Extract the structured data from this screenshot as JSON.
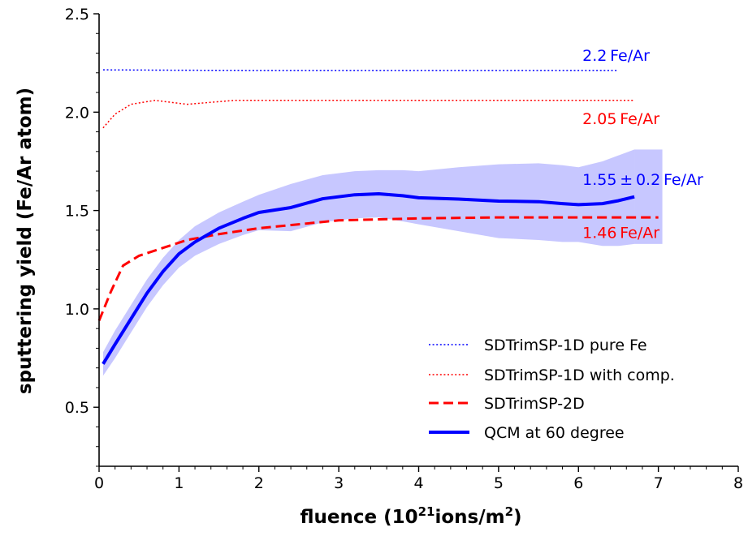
{
  "chart_data": {
    "type": "line",
    "xlabel": {
      "prefix": "fluence (10",
      "sup1": "21",
      "mid": "ions/m",
      "sup2": "2",
      "suffix": ")"
    },
    "ylabel": "sputtering yield (Fe/Ar atom)",
    "xlim": [
      0,
      8
    ],
    "ylim": [
      0.2,
      2.5
    ],
    "xticks": [
      0,
      1,
      2,
      3,
      4,
      5,
      6,
      7,
      8
    ],
    "xtick_labels": [
      "0",
      "1",
      "2",
      "3",
      "4",
      "5",
      "6",
      "7",
      "8"
    ],
    "yticks": [
      0.5,
      1.0,
      1.5,
      2.0,
      2.5
    ],
    "ytick_labels": [
      "0.5",
      "1.0",
      "1.5",
      "2.0",
      "2.5"
    ],
    "grid": false,
    "legend_position": "lower-right",
    "series": [
      {
        "name": "SDTrimSP-1D pure Fe",
        "color": "#0000ff",
        "style": "dotted",
        "x": [
          0.05,
          1,
          2,
          3,
          4,
          5,
          6,
          6.5
        ],
        "y": [
          2.215,
          2.213,
          2.212,
          2.212,
          2.212,
          2.212,
          2.212,
          2.212
        ]
      },
      {
        "name": "SDTrimSP-1D with comp.",
        "color": "#ff0000",
        "style": "dotted",
        "x": [
          0.05,
          0.2,
          0.4,
          0.7,
          0.9,
          1.1,
          1.4,
          1.7,
          2.0,
          3.0,
          4.0,
          5.0,
          6.0,
          6.7
        ],
        "y": [
          1.92,
          1.99,
          2.04,
          2.06,
          2.05,
          2.04,
          2.05,
          2.06,
          2.06,
          2.06,
          2.06,
          2.06,
          2.06,
          2.06
        ]
      },
      {
        "name": "SDTrimSP-2D",
        "color": "#ff0000",
        "style": "dashed",
        "x": [
          0,
          0.15,
          0.3,
          0.5,
          0.8,
          1.1,
          1.5,
          2.0,
          2.5,
          3.0,
          3.5,
          4.0,
          5.0,
          6.0,
          7.0
        ],
        "y": [
          0.94,
          1.09,
          1.22,
          1.27,
          1.31,
          1.35,
          1.38,
          1.41,
          1.43,
          1.45,
          1.455,
          1.46,
          1.465,
          1.465,
          1.465
        ]
      },
      {
        "name": "QCM at 60 degree",
        "color": "#0000ff",
        "style": "solid",
        "x": [
          0.05,
          0.2,
          0.4,
          0.6,
          0.8,
          1.0,
          1.2,
          1.5,
          1.8,
          2.0,
          2.4,
          2.8,
          3.2,
          3.5,
          3.8,
          4.0,
          4.5,
          5.0,
          5.5,
          5.8,
          6.0,
          6.3,
          6.5,
          6.7
        ],
        "y": [
          0.72,
          0.82,
          0.95,
          1.08,
          1.19,
          1.28,
          1.34,
          1.41,
          1.46,
          1.49,
          1.515,
          1.56,
          1.58,
          1.585,
          1.575,
          1.565,
          1.558,
          1.548,
          1.545,
          1.535,
          1.53,
          1.535,
          1.55,
          1.57
        ],
        "band_upper": [
          0.78,
          0.89,
          1.02,
          1.15,
          1.26,
          1.35,
          1.42,
          1.49,
          1.545,
          1.58,
          1.635,
          1.68,
          1.7,
          1.705,
          1.705,
          1.7,
          1.72,
          1.735,
          1.74,
          1.73,
          1.72,
          1.75,
          1.78,
          1.81
        ],
        "band_lower": [
          0.66,
          0.75,
          0.88,
          1.01,
          1.12,
          1.21,
          1.27,
          1.33,
          1.375,
          1.4,
          1.395,
          1.44,
          1.46,
          1.465,
          1.445,
          1.43,
          1.395,
          1.36,
          1.35,
          1.34,
          1.34,
          1.32,
          1.32,
          1.33
        ],
        "band_extension_x": [
          6.7,
          7.05
        ],
        "band_extension_upper": 1.81,
        "band_extension_lower": 1.33
      }
    ],
    "annotations": [
      {
        "text": "2.2 Fe/Ar",
        "x": 6.05,
        "y": 2.26,
        "color": "#0000ff"
      },
      {
        "text": "2.05 Fe/Ar",
        "x": 6.05,
        "y": 1.94,
        "color": "#ff0000"
      },
      {
        "text": "1.55 ± 0.2 Fe/Ar",
        "x": 6.05,
        "y": 1.63,
        "color": "#0000ff"
      },
      {
        "text": "1.46 Fe/Ar",
        "x": 6.05,
        "y": 1.36,
        "color": "#ff0000"
      }
    ]
  }
}
